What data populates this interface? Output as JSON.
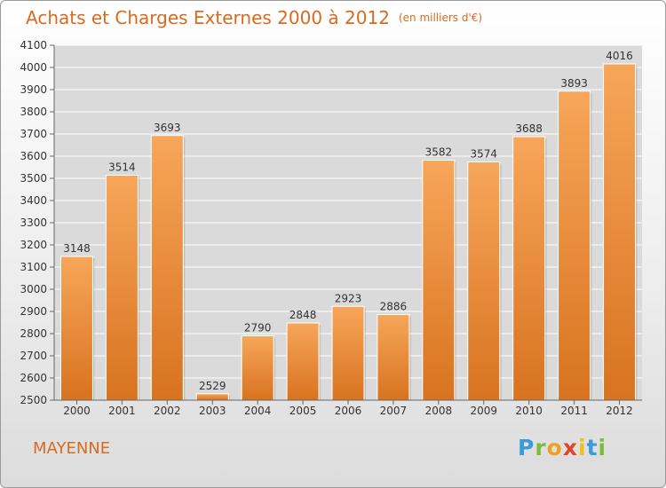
{
  "title": "Achats et Charges Externes 2000 à 2012",
  "subtitle": "(en milliers d'€)",
  "location": "MAYENNE",
  "brand": {
    "letters": [
      "P",
      "r",
      "o",
      "x",
      "i",
      "t",
      "i"
    ],
    "colors": [
      "#3b9ad9",
      "#7cbd3b",
      "#f0a020",
      "#e0452b",
      "#f0c020",
      "#3b9ad9",
      "#7cbd3b"
    ]
  },
  "colors": {
    "title": "#d96a1f",
    "bar_top": "#f7a65a",
    "bar_bottom": "#d8731f",
    "plot_bg": "#dadada",
    "grid": "#ffffff"
  },
  "chart_data": {
    "type": "bar",
    "categories": [
      "2000",
      "2001",
      "2002",
      "2003",
      "2004",
      "2005",
      "2006",
      "2007",
      "2008",
      "2009",
      "2010",
      "2011",
      "2012"
    ],
    "values": [
      3148,
      3514,
      3693,
      2529,
      2790,
      2848,
      2923,
      2886,
      3582,
      3574,
      3688,
      3893,
      4016
    ],
    "ylim": [
      2500,
      4100
    ],
    "yticks": [
      2500,
      2600,
      2700,
      2800,
      2900,
      3000,
      3100,
      3200,
      3300,
      3400,
      3500,
      3600,
      3700,
      3800,
      3900,
      4000,
      4100
    ],
    "grid": true,
    "xlabel": "",
    "ylabel": ""
  }
}
